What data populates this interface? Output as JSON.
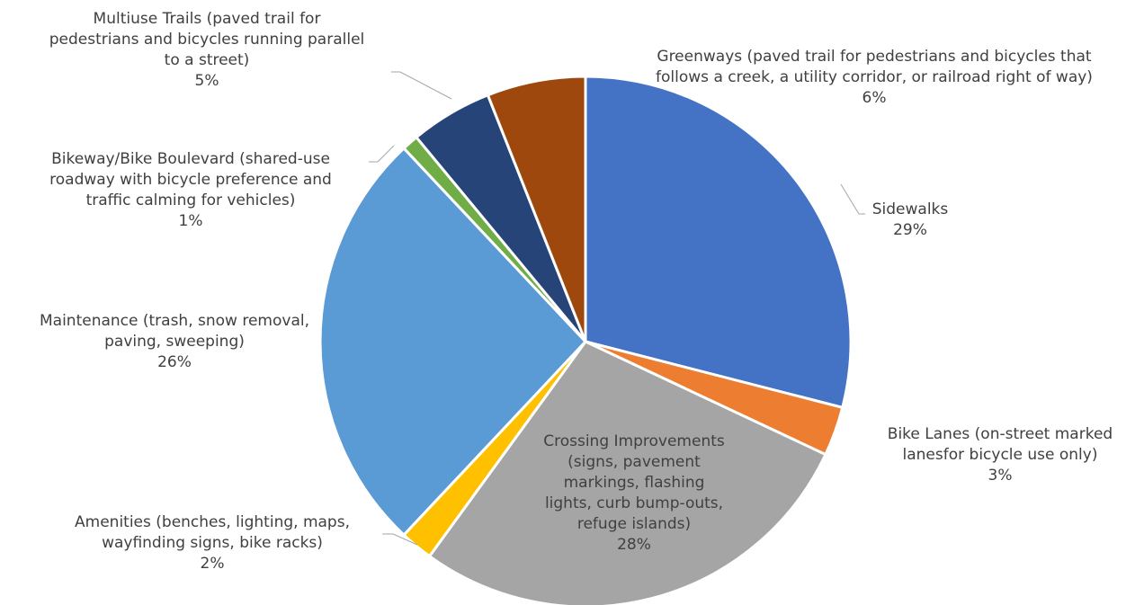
{
  "chart_data": {
    "type": "pie",
    "title": "",
    "start_angle_deg": 0,
    "direction": "clockwise",
    "slices": [
      {
        "category": "Sidewalks",
        "value": 29,
        "label": "29%",
        "color": "#4472C4"
      },
      {
        "category": "Bike Lanes (on-street marked lanesfor bicycle use only)",
        "value": 3,
        "label": "3%",
        "color": "#ED7D31"
      },
      {
        "category": "Crossing Improvements (signs, pavement markings, flashing lights, curb bump-outs, refuge islands)",
        "value": 28,
        "label": "28%",
        "color": "#A5A5A5"
      },
      {
        "category": "Amenities (benches, lighting, maps, wayfinding signs, bike racks)",
        "value": 2,
        "label": "2%",
        "color": "#FFC000"
      },
      {
        "category": "Maintenance (trash, snow removal, paving, sweeping)",
        "value": 26,
        "label": "26%",
        "color": "#5B9BD5"
      },
      {
        "category": "Bikeway/Bike Boulevard (shared-use roadway with bicycle preference and traffic calming for vehicles)",
        "value": 1,
        "label": "1%",
        "color": "#70AD47"
      },
      {
        "category": "Multiuse Trails (paved trail for pedestrians and bicycles running parallel to a street)",
        "value": 5,
        "label": "5%",
        "color": "#264478"
      },
      {
        "category": "Greenways (paved trail for pedestrians and bicycles that follows a creek, a utility corridor, or railroad right of way)",
        "value": 6,
        "label": "6%",
        "color": "#9E480E"
      }
    ],
    "labels": [
      {
        "lines": [
          "Sidewalks",
          "29%"
        ]
      },
      {
        "lines": [
          "Bike Lanes (on-street marked",
          "lanesfor bicycle use only)",
          "3%"
        ]
      },
      {
        "lines": [
          "Crossing Improvements",
          "(signs, pavement",
          "markings, flashing",
          "lights, curb bump-outs,",
          "refuge islands)",
          "28%"
        ]
      },
      {
        "lines": [
          "Amenities (benches, lighting, maps,",
          "wayfinding signs, bike racks)",
          "2%"
        ]
      },
      {
        "lines": [
          "Maintenance (trash, snow removal,",
          "paving, sweeping)",
          "26%"
        ]
      },
      {
        "lines": [
          "Bikeway/Bike Boulevard (shared-use",
          "roadway with bicycle preference and",
          "traffic calming for vehicles)",
          "1%"
        ]
      },
      {
        "lines": [
          "Multiuse Trails (paved trail for",
          "pedestrians and bicycles running parallel",
          "to a street)",
          "5%"
        ]
      },
      {
        "lines": [
          "Greenways (paved trail for pedestrians and bicycles that",
          "follows a creek, a utility corridor, or railroad right of way)",
          "6%"
        ]
      }
    ],
    "legend": "none",
    "data_labels": "category name and percentage, outside with leader lines"
  }
}
